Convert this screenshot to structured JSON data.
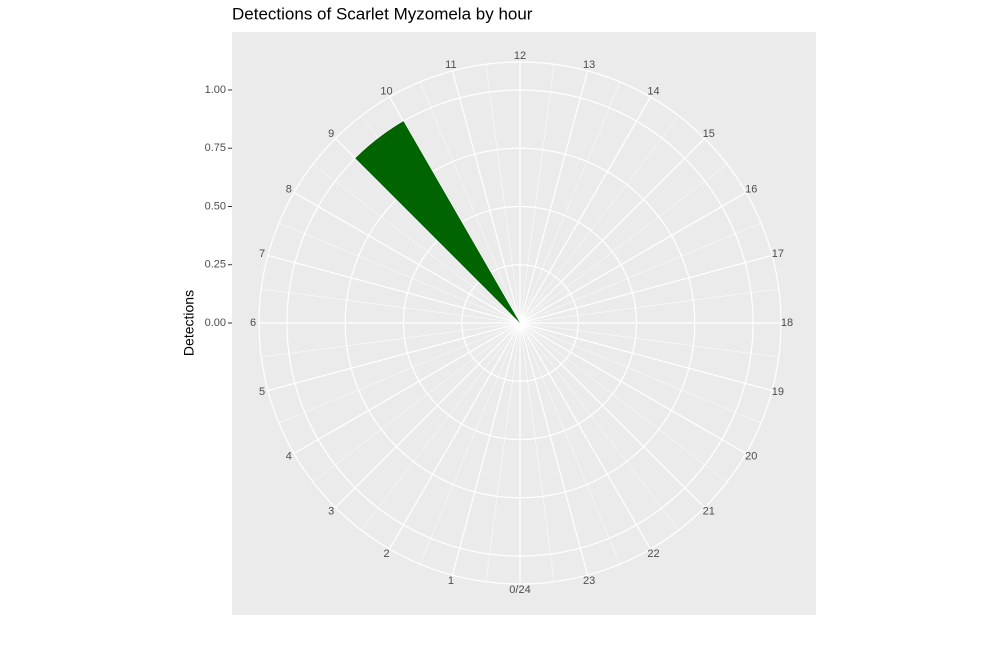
{
  "chart_data": {
    "type": "polar-bar",
    "title": "Detections of Scarlet Myzomela by hour",
    "y_label": "Detections",
    "categories": [
      "0/24",
      "1",
      "2",
      "3",
      "4",
      "5",
      "6",
      "7",
      "8",
      "9",
      "10",
      "11",
      "12",
      "13",
      "14",
      "15",
      "16",
      "17",
      "18",
      "19",
      "20",
      "21",
      "22",
      "23"
    ],
    "values": [
      0,
      0,
      0,
      0,
      0,
      0,
      0,
      0,
      0,
      1,
      0,
      0,
      0,
      0,
      0,
      0,
      0,
      0,
      0,
      0,
      0,
      0,
      0,
      0
    ],
    "color": "#006400",
    "ylim": [
      0,
      1.12
    ],
    "yticks": [
      {
        "value": 0,
        "label": "0.00"
      },
      {
        "value": 0.25,
        "label": "0.25"
      },
      {
        "value": 0.5,
        "label": "0.50"
      },
      {
        "value": 0.75,
        "label": "0.75"
      },
      {
        "value": 1,
        "label": "1.00"
      }
    ],
    "grid": true
  }
}
